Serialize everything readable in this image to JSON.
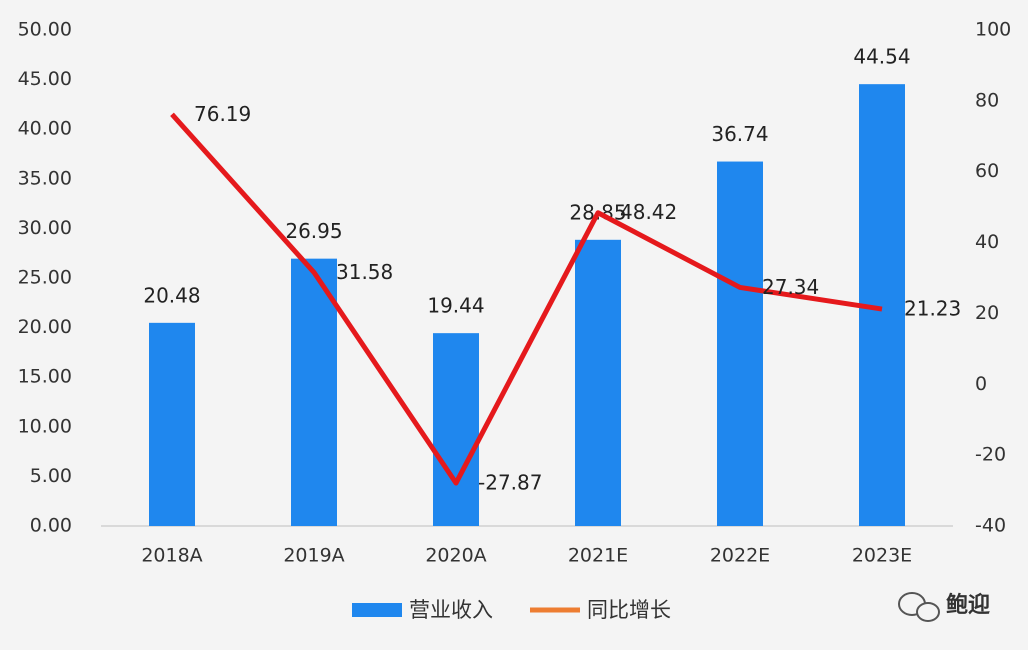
{
  "chart_data": {
    "type": "bar-line",
    "categories": [
      "2018A",
      "2019A",
      "2020A",
      "2021E",
      "2022E",
      "2023E"
    ],
    "series": [
      {
        "name": "营业收入",
        "type": "bar",
        "color": "#1f87ee",
        "values": [
          20.48,
          26.95,
          19.44,
          28.85,
          36.74,
          44.54
        ]
      },
      {
        "name": "同比增长",
        "type": "line",
        "axis": "y2",
        "color": "#e5191c",
        "legend_color": "#ed7d31",
        "values": [
          76.19,
          31.58,
          -27.87,
          48.42,
          27.34,
          21.23
        ]
      }
    ],
    "ylim": [
      0,
      50
    ],
    "yticks": [
      {
        "value": 0,
        "label": "0.00"
      },
      {
        "value": 5,
        "label": "5.00"
      },
      {
        "value": 10,
        "label": "10.00"
      },
      {
        "value": 15,
        "label": "15.00"
      },
      {
        "value": 20,
        "label": "20.00"
      },
      {
        "value": 25,
        "label": "25.00"
      },
      {
        "value": 30,
        "label": "30.00"
      },
      {
        "value": 35,
        "label": "35.00"
      },
      {
        "value": 40,
        "label": "40.00"
      },
      {
        "value": 45,
        "label": "45.00"
      },
      {
        "value": 50,
        "label": "50.00"
      }
    ],
    "y2lim": [
      -40,
      100
    ],
    "y2ticks": [
      -40,
      -20,
      0,
      20,
      40,
      60,
      80,
      100
    ],
    "legend": "bottom",
    "watermark": "鲍迎"
  }
}
